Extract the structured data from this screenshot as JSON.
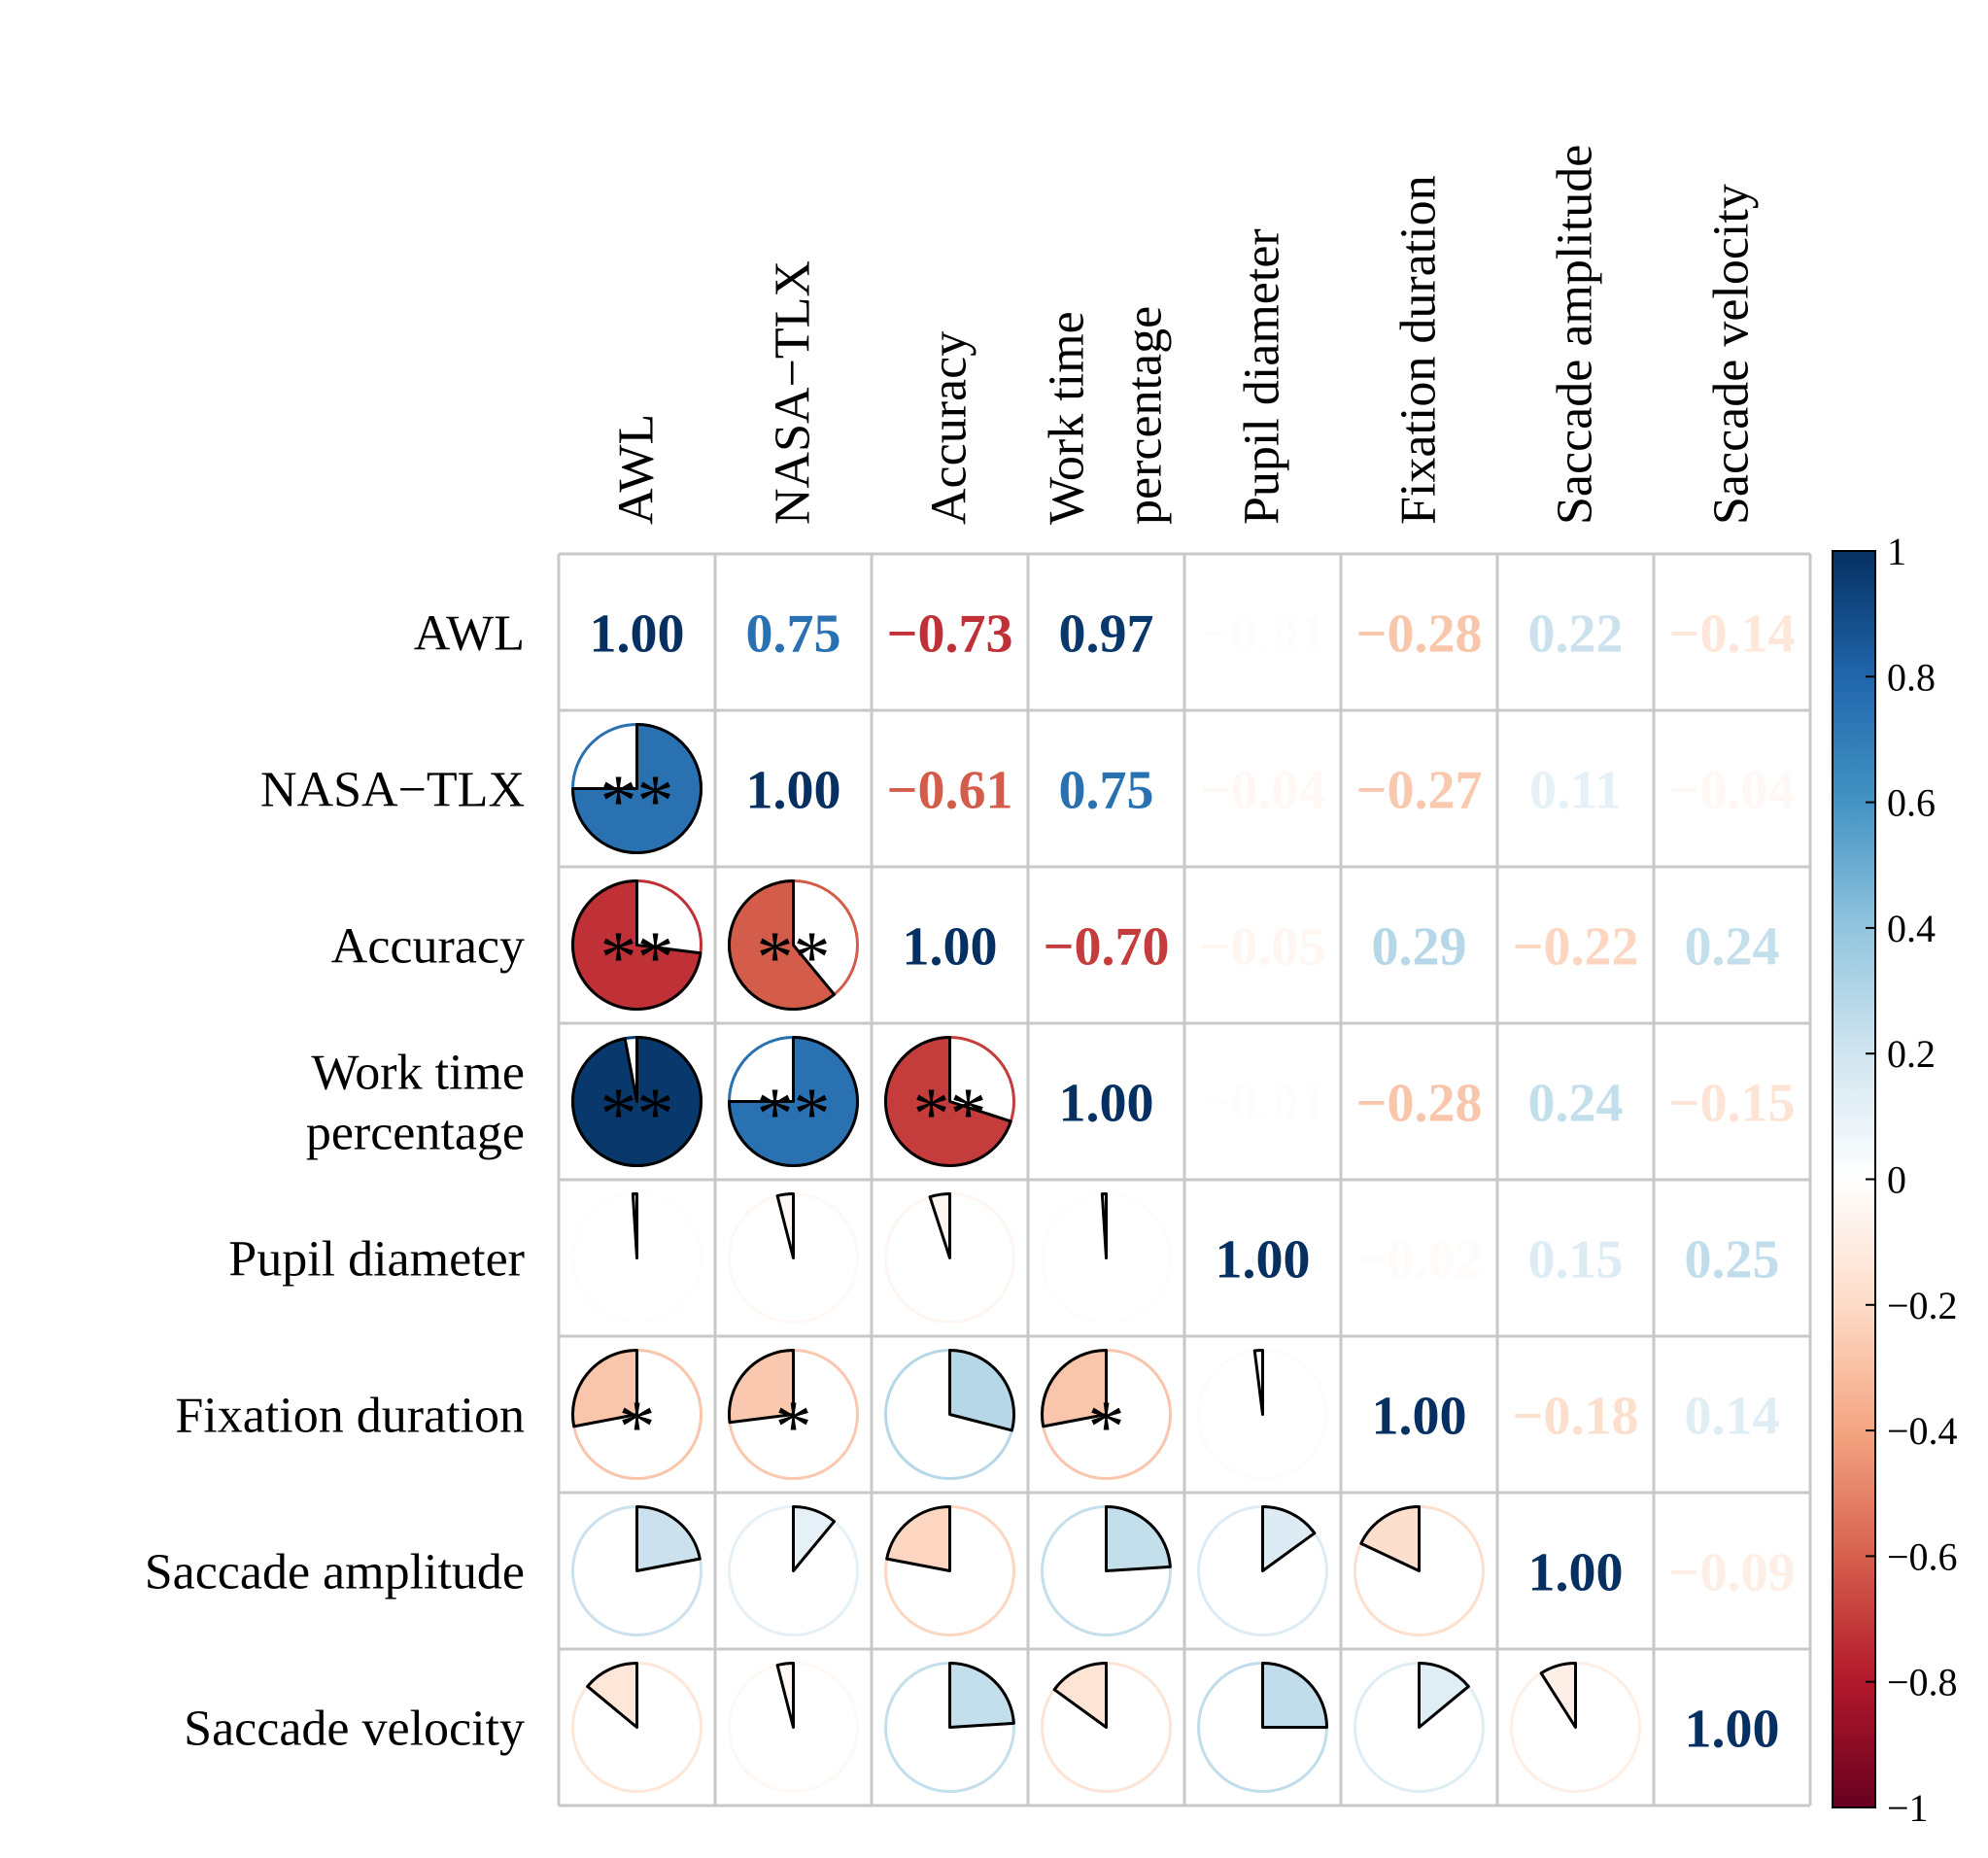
{
  "chart_data": {
    "type": "heatmap",
    "title": "",
    "variables": [
      "AWL",
      "NASA−TLX",
      "Accuracy",
      "Work time percentage",
      "Pupil diameter",
      "Fixation duration",
      "Saccade amplitude",
      "Saccade velocity"
    ],
    "row_labels": [
      [
        "AWL"
      ],
      [
        "NASA−TLX"
      ],
      [
        "Accuracy"
      ],
      [
        "Work time",
        "percentage"
      ],
      [
        "Pupil diameter"
      ],
      [
        "Fixation duration"
      ],
      [
        "Saccade amplitude"
      ],
      [
        "Saccade velocity"
      ]
    ],
    "column_labels": [
      [
        "AWL"
      ],
      [
        "NASA−TLX"
      ],
      [
        "Accuracy"
      ],
      [
        "Work time",
        "percentage"
      ],
      [
        "Pupil diameter"
      ],
      [
        "Fixation duration"
      ],
      [
        "Saccade amplitude"
      ],
      [
        "Saccade velocity"
      ]
    ],
    "matrix": [
      [
        1.0,
        0.75,
        -0.73,
        0.97,
        -0.01,
        -0.28,
        0.22,
        -0.14
      ],
      [
        0.75,
        1.0,
        -0.61,
        0.75,
        -0.04,
        -0.27,
        0.11,
        -0.04
      ],
      [
        -0.73,
        -0.61,
        1.0,
        -0.7,
        -0.05,
        0.29,
        -0.22,
        0.24
      ],
      [
        0.97,
        0.75,
        -0.7,
        1.0,
        -0.01,
        -0.28,
        0.24,
        -0.15
      ],
      [
        -0.01,
        -0.04,
        -0.05,
        -0.01,
        1.0,
        -0.02,
        0.15,
        0.25
      ],
      [
        -0.28,
        -0.27,
        0.29,
        -0.28,
        -0.02,
        1.0,
        -0.18,
        0.14
      ],
      [
        0.22,
        0.11,
        -0.22,
        0.24,
        0.15,
        -0.18,
        1.0,
        -0.09
      ],
      [
        -0.14,
        -0.04,
        0.24,
        -0.15,
        0.25,
        0.14,
        -0.09,
        1.0
      ]
    ],
    "value_labels": [
      [
        "1.00",
        "0.75",
        "−0.73",
        "0.97",
        "−0.01",
        "−0.28",
        "0.22",
        "−0.14"
      ],
      [
        "0.75",
        "1.00",
        "−0.61",
        "0.75",
        "−0.04",
        "−0.27",
        "0.11",
        "−0.04"
      ],
      [
        "−0.73",
        "−0.61",
        "1.00",
        "−0.70",
        "−0.05",
        "0.29",
        "−0.22",
        "0.24"
      ],
      [
        "0.97",
        "0.75",
        "−0.70",
        "1.00",
        "−0.01",
        "−0.28",
        "0.24",
        "−0.15"
      ],
      [
        "−0.01",
        "−0.04",
        "−0.05",
        "−0.01",
        "1.00",
        "−0.02",
        "0.15",
        "0.25"
      ],
      [
        "−0.28",
        "−0.27",
        "0.29",
        "−0.28",
        "−0.02",
        "1.00",
        "−0.18",
        "0.14"
      ],
      [
        "0.22",
        "0.11",
        "−0.22",
        "0.24",
        "0.15",
        "−0.18",
        "1.00",
        "−0.09"
      ],
      [
        "−0.14",
        "−0.04",
        "0.24",
        "−0.15",
        "0.25",
        "0.14",
        "−0.09",
        "1.00"
      ]
    ],
    "significance": [
      [
        "",
        "",
        "",
        "",
        "",
        "",
        "",
        ""
      ],
      [
        "**",
        "",
        "",
        "",
        "",
        "",
        "",
        ""
      ],
      [
        "**",
        "**",
        "",
        "",
        "",
        "",
        "",
        ""
      ],
      [
        "**",
        "**",
        "**",
        "",
        "",
        "",
        "",
        ""
      ],
      [
        "",
        "",
        "",
        "",
        "",
        "",
        "",
        ""
      ],
      [
        "*",
        "*",
        "",
        "*",
        "",
        "",
        "",
        ""
      ],
      [
        "",
        "",
        "",
        "",
        "",
        "",
        "",
        ""
      ],
      [
        "",
        "",
        "",
        "",
        "",
        "",
        "",
        ""
      ]
    ],
    "upper_triangle": "numbers",
    "lower_triangle": "pie",
    "colorbar": {
      "range": [
        -1,
        1
      ],
      "ticks": [
        "1",
        "0.8",
        "0.6",
        "0.4",
        "0.2",
        "0",
        "−0.2",
        "−0.4",
        "−0.6",
        "−0.8",
        "−1"
      ],
      "tick_values": [
        1,
        0.8,
        0.6,
        0.4,
        0.2,
        0,
        -0.2,
        -0.4,
        -0.6,
        -0.8,
        -1
      ],
      "palette": [
        "#67001F",
        "#B2182B",
        "#D6604D",
        "#F4A582",
        "#FDDBC7",
        "#FFFFFF",
        "#D1E5F0",
        "#92C5DE",
        "#4393C3",
        "#2166AC",
        "#053061"
      ],
      "placement": "right"
    },
    "grid": true
  }
}
